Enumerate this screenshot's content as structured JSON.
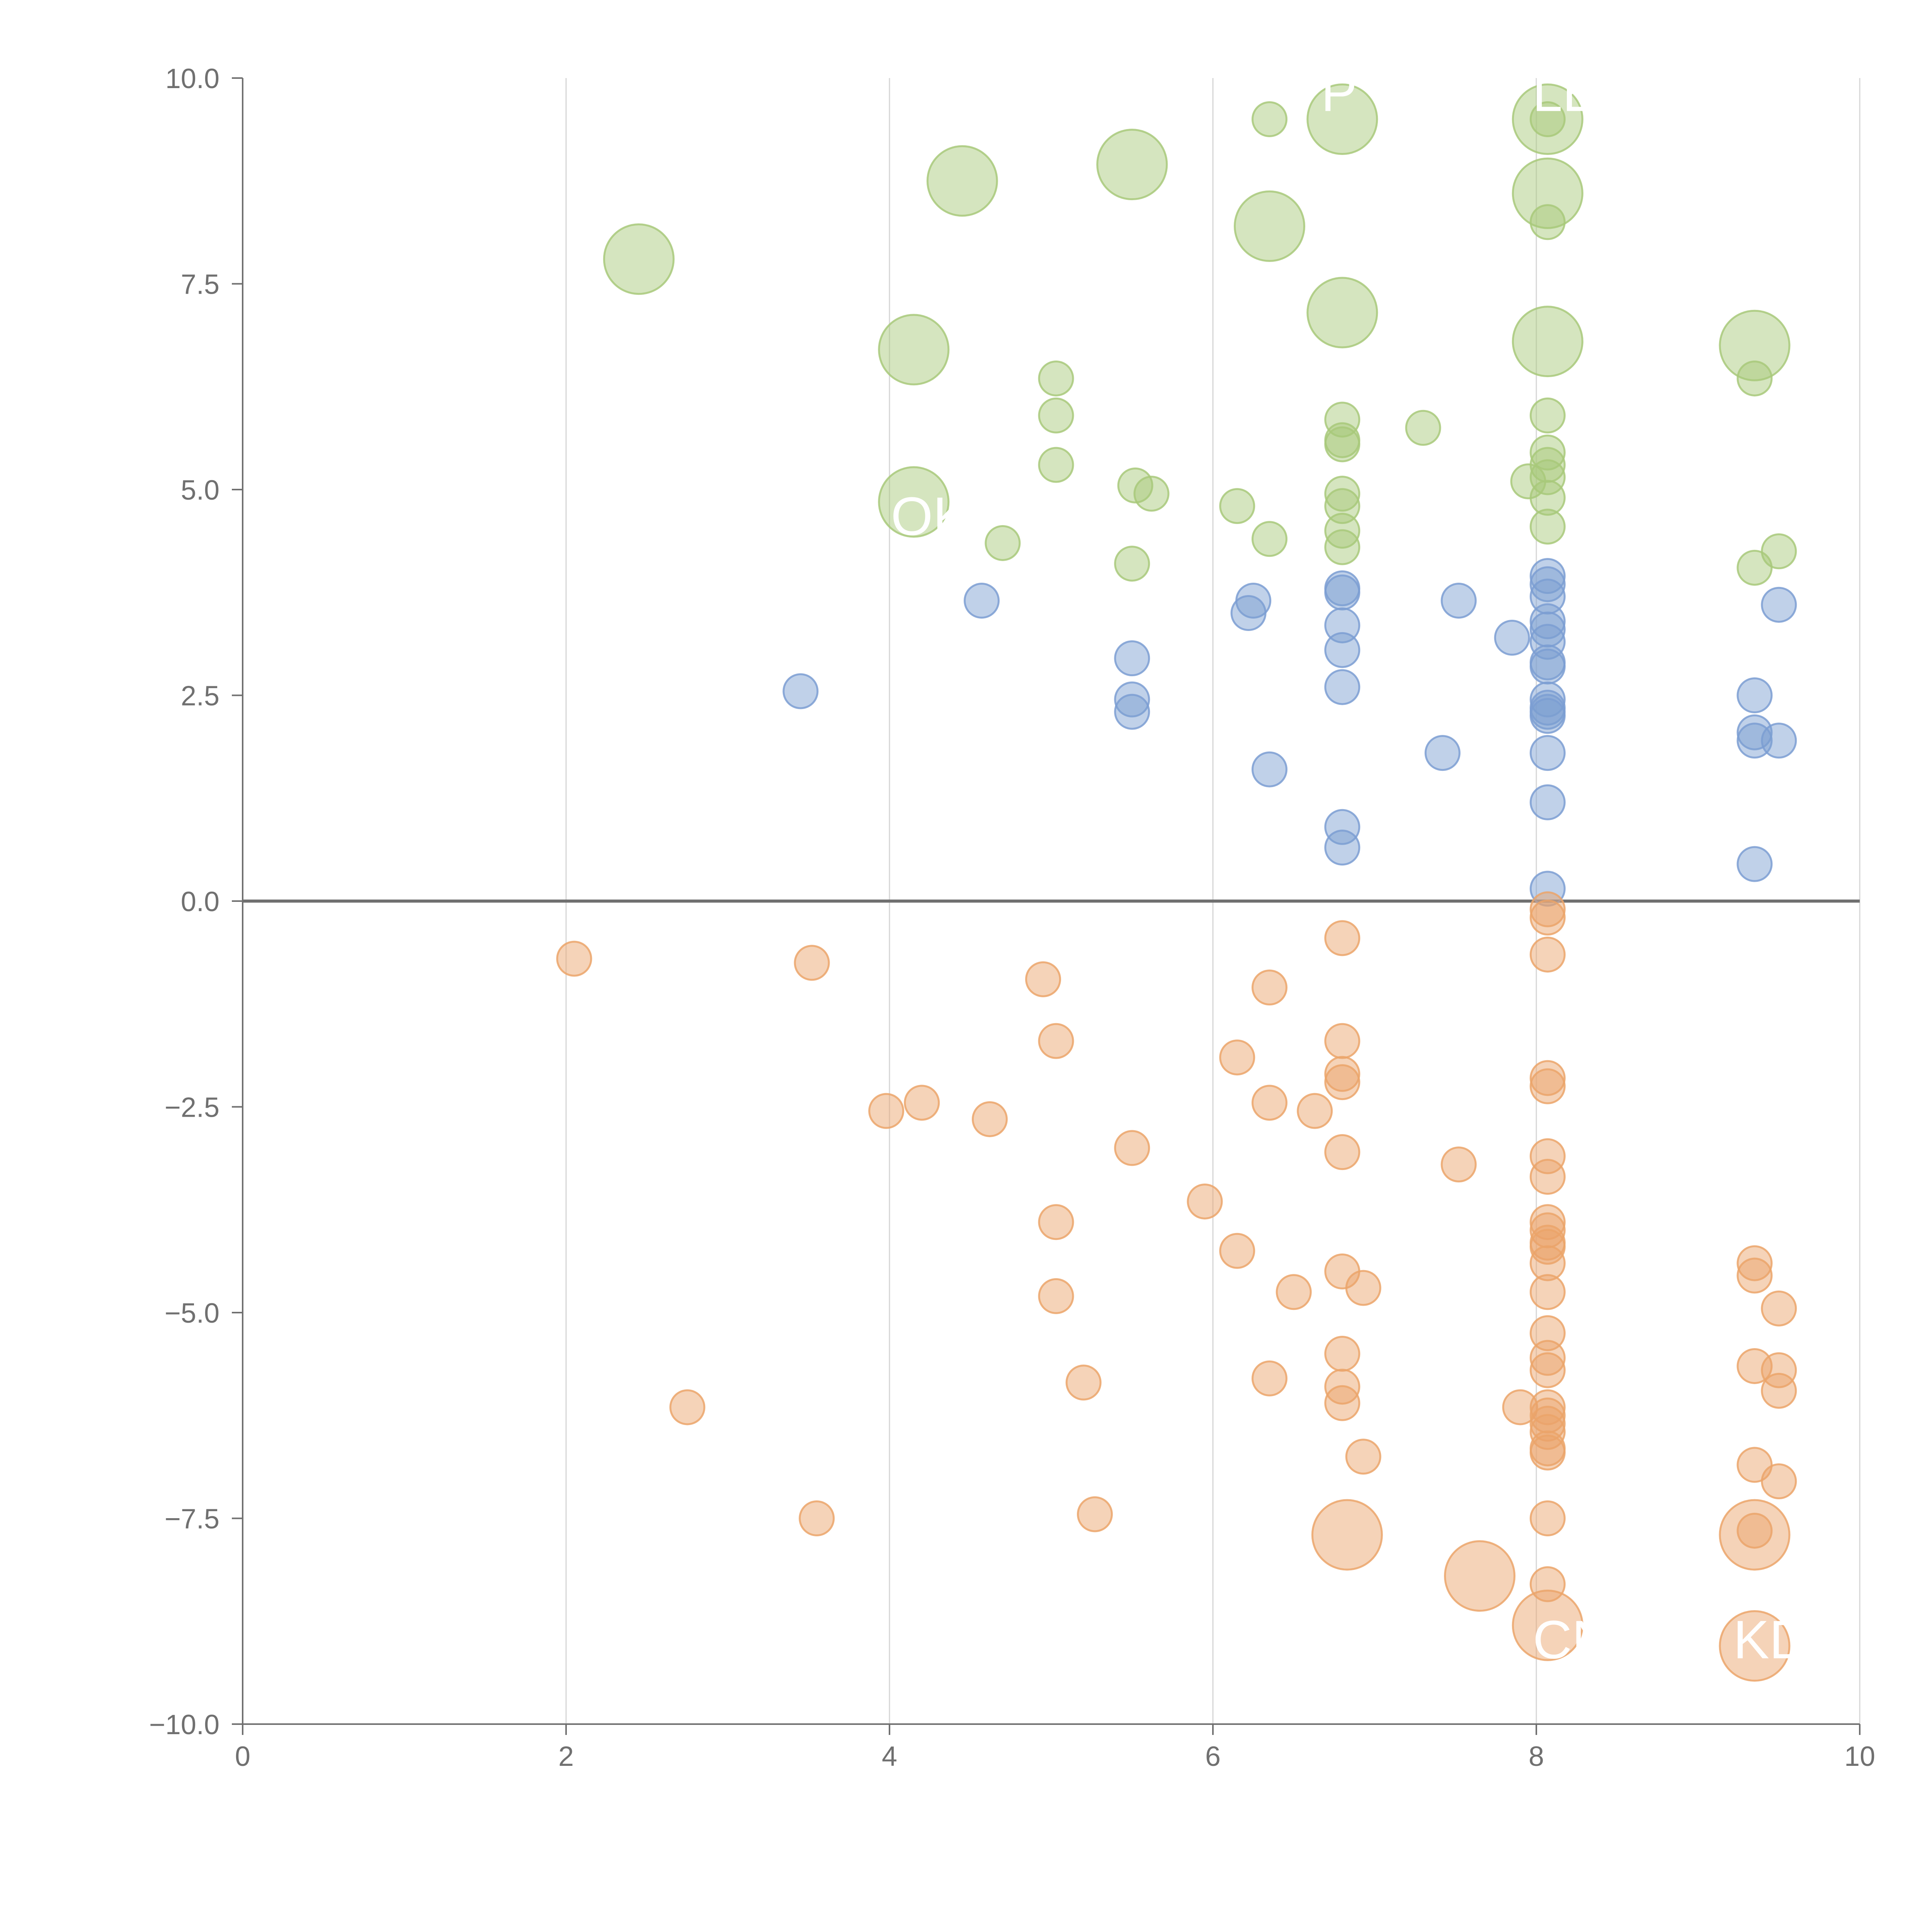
{
  "chart_data": {
    "type": "scatter",
    "title": "",
    "xlabel": "",
    "ylabel": "",
    "xlim": [
      0,
      10
    ],
    "ylim": [
      -10,
      10
    ],
    "x_ticks": [
      "0",
      "2",
      "4",
      "6",
      "8",
      "10"
    ],
    "y_ticks": [
      "10.0",
      "7.5",
      "5.0",
      "2.5",
      "0.0",
      "−2.5",
      "−5.0",
      "−7.5",
      "−10.0"
    ],
    "grid": "vertical",
    "colors": {
      "green": "#a8c97a",
      "blue": "#7b9ed2",
      "orange": "#eba46a",
      "axis": "#707070",
      "grid": "#d6d6d6",
      "label": "#ffffff"
    },
    "series": [
      {
        "name": "green",
        "color": "#a8c97a",
        "points": [
          {
            "x": 2.45,
            "y": 7.8,
            "s": 3
          },
          {
            "x": 4.45,
            "y": 8.75,
            "s": 3
          },
          {
            "x": 5.5,
            "y": 8.95,
            "s": 3
          },
          {
            "x": 6.35,
            "y": 9.5,
            "s": 1
          },
          {
            "x": 6.8,
            "y": 9.5,
            "s": 3
          },
          {
            "x": 8.07,
            "y": 9.5,
            "s": 3
          },
          {
            "x": 8.07,
            "y": 9.5,
            "s": 1
          },
          {
            "x": 8.07,
            "y": 8.6,
            "s": 3
          },
          {
            "x": 6.35,
            "y": 8.2,
            "s": 3
          },
          {
            "x": 8.07,
            "y": 8.25,
            "s": 1
          },
          {
            "x": 4.15,
            "y": 6.7,
            "s": 3
          },
          {
            "x": 6.8,
            "y": 7.15,
            "s": 3
          },
          {
            "x": 8.07,
            "y": 6.8,
            "s": 3
          },
          {
            "x": 9.35,
            "y": 6.75,
            "s": 3
          },
          {
            "x": 9.35,
            "y": 6.35,
            "s": 1
          },
          {
            "x": 5.03,
            "y": 6.35,
            "s": 1
          },
          {
            "x": 5.03,
            "y": 5.9,
            "s": 1
          },
          {
            "x": 8.07,
            "y": 5.9,
            "s": 1
          },
          {
            "x": 6.8,
            "y": 5.85,
            "s": 1
          },
          {
            "x": 7.3,
            "y": 5.75,
            "s": 1
          },
          {
            "x": 6.8,
            "y": 5.6,
            "s": 1
          },
          {
            "x": 6.8,
            "y": 5.55,
            "s": 1
          },
          {
            "x": 8.07,
            "y": 5.45,
            "s": 1
          },
          {
            "x": 8.07,
            "y": 5.3,
            "s": 1
          },
          {
            "x": 5.03,
            "y": 5.3,
            "s": 1
          },
          {
            "x": 8.07,
            "y": 5.15,
            "s": 1
          },
          {
            "x": 7.95,
            "y": 5.1,
            "s": 1
          },
          {
            "x": 5.52,
            "y": 5.05,
            "s": 1
          },
          {
            "x": 5.62,
            "y": 4.95,
            "s": 1
          },
          {
            "x": 6.8,
            "y": 4.95,
            "s": 1
          },
          {
            "x": 8.07,
            "y": 4.9,
            "s": 1
          },
          {
            "x": 4.15,
            "y": 4.85,
            "s": 3
          },
          {
            "x": 6.8,
            "y": 4.8,
            "s": 1
          },
          {
            "x": 6.15,
            "y": 4.8,
            "s": 1
          },
          {
            "x": 8.07,
            "y": 4.55,
            "s": 1
          },
          {
            "x": 6.8,
            "y": 4.5,
            "s": 1
          },
          {
            "x": 6.35,
            "y": 4.4,
            "s": 1
          },
          {
            "x": 4.7,
            "y": 4.35,
            "s": 1
          },
          {
            "x": 6.8,
            "y": 4.3,
            "s": 1
          },
          {
            "x": 9.5,
            "y": 4.25,
            "s": 1
          },
          {
            "x": 5.5,
            "y": 4.1,
            "s": 1
          },
          {
            "x": 9.35,
            "y": 4.05,
            "s": 1
          }
        ]
      },
      {
        "name": "blue",
        "color": "#7b9ed2",
        "points": [
          {
            "x": 8.07,
            "y": 3.95,
            "s": 1
          },
          {
            "x": 8.07,
            "y": 3.85,
            "s": 1
          },
          {
            "x": 6.8,
            "y": 3.8,
            "s": 1
          },
          {
            "x": 6.8,
            "y": 3.75,
            "s": 1
          },
          {
            "x": 8.07,
            "y": 3.7,
            "s": 1
          },
          {
            "x": 4.57,
            "y": 3.65,
            "s": 1
          },
          {
            "x": 6.25,
            "y": 3.65,
            "s": 1
          },
          {
            "x": 7.52,
            "y": 3.65,
            "s": 1
          },
          {
            "x": 9.5,
            "y": 3.6,
            "s": 1
          },
          {
            "x": 6.22,
            "y": 3.5,
            "s": 1
          },
          {
            "x": 8.07,
            "y": 3.4,
            "s": 1
          },
          {
            "x": 6.8,
            "y": 3.35,
            "s": 1
          },
          {
            "x": 8.07,
            "y": 3.3,
            "s": 1
          },
          {
            "x": 7.85,
            "y": 3.2,
            "s": 1
          },
          {
            "x": 8.07,
            "y": 3.15,
            "s": 1
          },
          {
            "x": 6.8,
            "y": 3.05,
            "s": 1
          },
          {
            "x": 5.5,
            "y": 2.95,
            "s": 1
          },
          {
            "x": 8.07,
            "y": 2.9,
            "s": 1
          },
          {
            "x": 8.07,
            "y": 2.85,
            "s": 1
          },
          {
            "x": 3.45,
            "y": 2.55,
            "s": 1
          },
          {
            "x": 6.8,
            "y": 2.6,
            "s": 1
          },
          {
            "x": 9.35,
            "y": 2.5,
            "s": 1
          },
          {
            "x": 5.5,
            "y": 2.45,
            "s": 1
          },
          {
            "x": 8.07,
            "y": 2.45,
            "s": 1
          },
          {
            "x": 8.07,
            "y": 2.35,
            "s": 1
          },
          {
            "x": 8.07,
            "y": 2.3,
            "s": 1
          },
          {
            "x": 5.5,
            "y": 2.3,
            "s": 1
          },
          {
            "x": 8.07,
            "y": 2.25,
            "s": 1
          },
          {
            "x": 9.35,
            "y": 2.05,
            "s": 1
          },
          {
            "x": 9.35,
            "y": 1.95,
            "s": 1
          },
          {
            "x": 9.5,
            "y": 1.95,
            "s": 1
          },
          {
            "x": 7.42,
            "y": 1.8,
            "s": 1
          },
          {
            "x": 8.07,
            "y": 1.8,
            "s": 1
          },
          {
            "x": 6.35,
            "y": 1.6,
            "s": 1
          },
          {
            "x": 8.07,
            "y": 1.2,
            "s": 1
          },
          {
            "x": 6.8,
            "y": 0.9,
            "s": 1
          },
          {
            "x": 6.8,
            "y": 0.65,
            "s": 1
          },
          {
            "x": 9.35,
            "y": 0.45,
            "s": 1
          },
          {
            "x": 8.07,
            "y": 0.15,
            "s": 1
          }
        ]
      },
      {
        "name": "orange",
        "color": "#eba46a",
        "points": [
          {
            "x": 8.07,
            "y": -0.1,
            "s": 1
          },
          {
            "x": 8.07,
            "y": -0.2,
            "s": 1
          },
          {
            "x": 6.8,
            "y": -0.45,
            "s": 1
          },
          {
            "x": 2.05,
            "y": -0.7,
            "s": 1
          },
          {
            "x": 8.07,
            "y": -0.65,
            "s": 1
          },
          {
            "x": 3.52,
            "y": -0.75,
            "s": 1
          },
          {
            "x": 4.95,
            "y": -0.95,
            "s": 1
          },
          {
            "x": 6.35,
            "y": -1.05,
            "s": 1
          },
          {
            "x": 5.03,
            "y": -1.7,
            "s": 1
          },
          {
            "x": 6.8,
            "y": -1.7,
            "s": 1
          },
          {
            "x": 6.15,
            "y": -1.9,
            "s": 1
          },
          {
            "x": 6.8,
            "y": -2.1,
            "s": 1
          },
          {
            "x": 8.07,
            "y": -2.15,
            "s": 1
          },
          {
            "x": 6.8,
            "y": -2.2,
            "s": 1
          },
          {
            "x": 8.07,
            "y": -2.25,
            "s": 1
          },
          {
            "x": 4.2,
            "y": -2.45,
            "s": 1
          },
          {
            "x": 6.35,
            "y": -2.45,
            "s": 1
          },
          {
            "x": 3.98,
            "y": -2.55,
            "s": 1
          },
          {
            "x": 6.63,
            "y": -2.55,
            "s": 1
          },
          {
            "x": 4.62,
            "y": -2.65,
            "s": 1
          },
          {
            "x": 5.5,
            "y": -3.0,
            "s": 1
          },
          {
            "x": 6.8,
            "y": -3.05,
            "s": 1
          },
          {
            "x": 8.07,
            "y": -3.1,
            "s": 1
          },
          {
            "x": 7.52,
            "y": -3.2,
            "s": 1
          },
          {
            "x": 8.07,
            "y": -3.35,
            "s": 1
          },
          {
            "x": 5.95,
            "y": -3.65,
            "s": 1
          },
          {
            "x": 5.03,
            "y": -3.9,
            "s": 1
          },
          {
            "x": 8.07,
            "y": -3.9,
            "s": 1
          },
          {
            "x": 8.07,
            "y": -4.0,
            "s": 1
          },
          {
            "x": 8.07,
            "y": -4.15,
            "s": 1
          },
          {
            "x": 8.07,
            "y": -4.2,
            "s": 1
          },
          {
            "x": 6.15,
            "y": -4.25,
            "s": 1
          },
          {
            "x": 9.35,
            "y": -4.4,
            "s": 1
          },
          {
            "x": 8.07,
            "y": -4.4,
            "s": 1
          },
          {
            "x": 6.8,
            "y": -4.5,
            "s": 1
          },
          {
            "x": 9.35,
            "y": -4.55,
            "s": 1
          },
          {
            "x": 6.93,
            "y": -4.7,
            "s": 1
          },
          {
            "x": 6.5,
            "y": -4.75,
            "s": 1
          },
          {
            "x": 8.07,
            "y": -4.75,
            "s": 1
          },
          {
            "x": 5.03,
            "y": -4.8,
            "s": 1
          },
          {
            "x": 9.5,
            "y": -4.95,
            "s": 1
          },
          {
            "x": 8.07,
            "y": -5.25,
            "s": 1
          },
          {
            "x": 6.8,
            "y": -5.5,
            "s": 1
          },
          {
            "x": 8.07,
            "y": -5.55,
            "s": 1
          },
          {
            "x": 9.35,
            "y": -5.65,
            "s": 1
          },
          {
            "x": 9.5,
            "y": -5.7,
            "s": 1
          },
          {
            "x": 8.07,
            "y": -5.7,
            "s": 1
          },
          {
            "x": 6.35,
            "y": -5.8,
            "s": 1
          },
          {
            "x": 5.2,
            "y": -5.85,
            "s": 1
          },
          {
            "x": 6.8,
            "y": -5.9,
            "s": 1
          },
          {
            "x": 9.5,
            "y": -5.95,
            "s": 1
          },
          {
            "x": 2.75,
            "y": -6.15,
            "s": 1
          },
          {
            "x": 6.8,
            "y": -6.1,
            "s": 1
          },
          {
            "x": 7.9,
            "y": -6.15,
            "s": 1
          },
          {
            "x": 8.07,
            "y": -6.15,
            "s": 1
          },
          {
            "x": 8.07,
            "y": -6.25,
            "s": 1
          },
          {
            "x": 8.07,
            "y": -6.35,
            "s": 1
          },
          {
            "x": 8.07,
            "y": -6.45,
            "s": 1
          },
          {
            "x": 8.07,
            "y": -6.65,
            "s": 1
          },
          {
            "x": 8.07,
            "y": -6.7,
            "s": 1
          },
          {
            "x": 6.93,
            "y": -6.75,
            "s": 1
          },
          {
            "x": 9.35,
            "y": -6.85,
            "s": 1
          },
          {
            "x": 9.5,
            "y": -7.05,
            "s": 1
          },
          {
            "x": 3.55,
            "y": -7.5,
            "s": 1
          },
          {
            "x": 5.27,
            "y": -7.45,
            "s": 1
          },
          {
            "x": 8.07,
            "y": -7.5,
            "s": 1
          },
          {
            "x": 6.83,
            "y": -7.7,
            "s": 3
          },
          {
            "x": 9.35,
            "y": -7.65,
            "s": 1
          },
          {
            "x": 9.35,
            "y": -7.7,
            "s": 3
          },
          {
            "x": 7.65,
            "y": -8.2,
            "s": 3
          },
          {
            "x": 8.07,
            "y": -8.3,
            "s": 1
          },
          {
            "x": 8.07,
            "y": -8.8,
            "s": 3
          },
          {
            "x": 9.35,
            "y": -9.05,
            "s": 3
          }
        ]
      }
    ],
    "annotations": [
      {
        "text": "P",
        "x": 6.78,
        "y": 9.6
      },
      {
        "text": "LE",
        "x": 8.18,
        "y": 9.6
      },
      {
        "text": "OK",
        "x": 4.25,
        "y": 4.45
      },
      {
        "text": "CN",
        "x": 8.22,
        "y": -9.2
      },
      {
        "text": "KD",
        "x": 9.45,
        "y": -9.2
      }
    ]
  }
}
